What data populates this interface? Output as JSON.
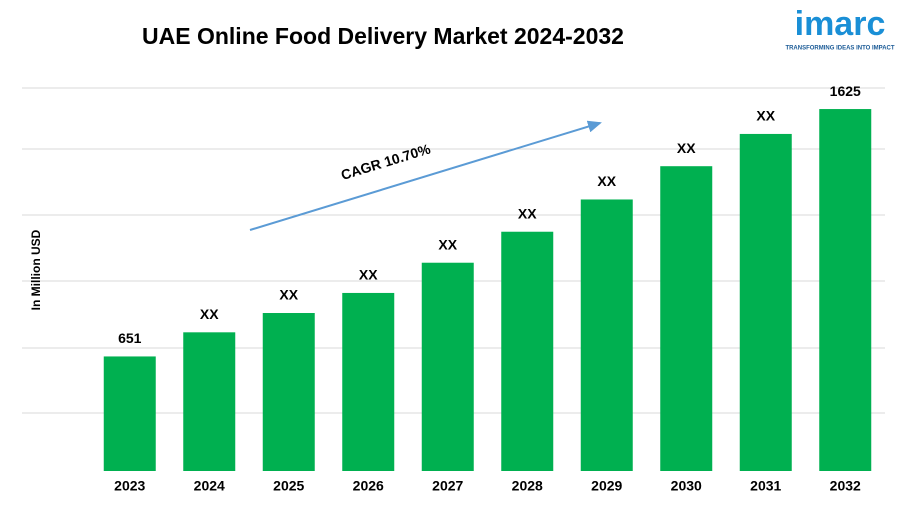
{
  "chart_data": {
    "type": "bar",
    "title": "UAE Online Food Delivery Market 2024-2032",
    "y_label": "In Million USD",
    "annotation": "CAGR 10.70%",
    "logo": {
      "name": "imarc",
      "tagline": "TRANSFORMING IDEAS INTO IMPACT"
    },
    "categories": [
      "2023",
      "2024",
      "2025",
      "2026",
      "2027",
      "2028",
      "2029",
      "2030",
      "2031",
      "2032"
    ],
    "values": [
      651,
      746,
      822,
      901,
      1020,
      1142,
      1269,
      1400,
      1527,
      1625
    ],
    "value_labels": [
      "651",
      "XX",
      "XX",
      "XX",
      "XX",
      "XX",
      "XX",
      "XX",
      "XX",
      "1625"
    ],
    "color": "#00b050",
    "ylim": [
      200,
      1700
    ],
    "grid": true
  }
}
